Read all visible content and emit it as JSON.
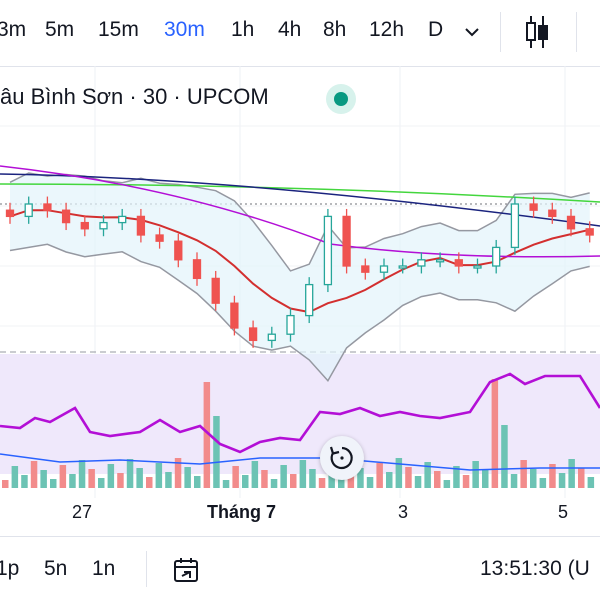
{
  "toolbar": {
    "timeframes": [
      "3m",
      "5m",
      "15m",
      "30m",
      "1h",
      "4h",
      "8h",
      "12h",
      "D"
    ],
    "active": "30m",
    "more_icon": "chevron-down-icon",
    "chart_type_icon": "candlestick-icon"
  },
  "legend": {
    "text": "âu Bình Sơn · 30 · UPCOM",
    "status_icon": "market-open-dot",
    "status_color": "#089981"
  },
  "x_axis": {
    "labels": [
      "27",
      "Tháng 7",
      "3",
      "5"
    ]
  },
  "reset_icon": "reset-icon",
  "range_bar": {
    "ranges": [
      "1p",
      "5n",
      "1n"
    ],
    "goto_icon": "calendar-goto-icon",
    "clock": "13:51:30 (U"
  },
  "colors": {
    "up": "#26a69a",
    "down": "#ef5350",
    "accent": "#2962ff",
    "rsi": "#b30fd6",
    "rsi_band": "#efe8fb"
  },
  "chart_data": [
    {
      "type": "candlestick",
      "title": "",
      "overlays": [
        "Bollinger Bands",
        "moving averages"
      ],
      "approx_close": [
        34.4,
        34.6,
        34.5,
        34.3,
        34.2,
        34.3,
        34.4,
        34.1,
        34.0,
        33.7,
        33.4,
        33.0,
        32.6,
        32.4,
        32.5,
        32.8,
        33.3,
        34.4,
        33.6,
        33.5,
        33.6,
        33.6,
        33.7,
        33.7,
        33.6,
        33.6,
        33.9,
        34.6,
        34.5,
        34.4,
        34.2,
        34.1
      ]
    },
    {
      "type": "line",
      "title": "",
      "series_indicator": "RSI"
    },
    {
      "type": "bar",
      "title": "",
      "series_indicator": "Volume"
    }
  ]
}
